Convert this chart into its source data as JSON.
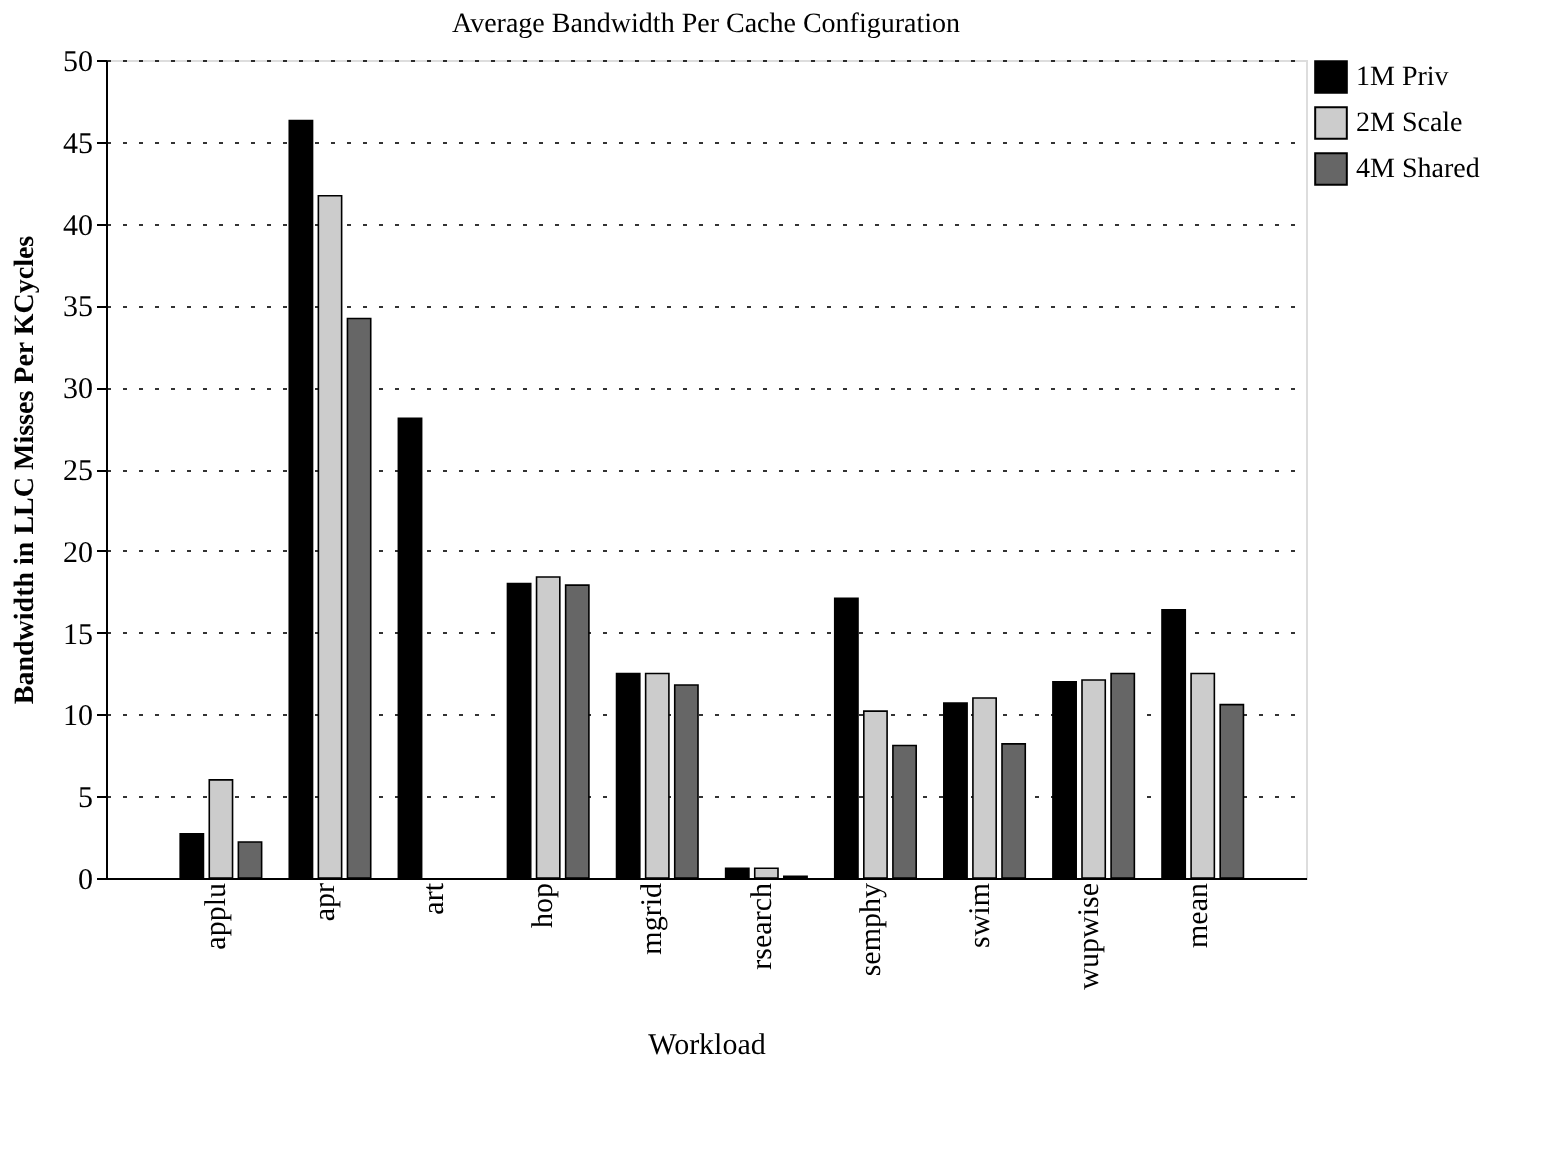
{
  "chart_data": {
    "type": "bar",
    "title": "Average Bandwidth Per Cache Configuration",
    "xlabel": "Workload",
    "ylabel": "Bandwidth in LLC Misses Per KCycles",
    "categories": [
      "applu",
      "apr",
      "art",
      "hop",
      "mgrid",
      "rsearch",
      "semphy",
      "swim",
      "wupwise",
      "mean"
    ],
    "series": [
      {
        "name": "1M Priv",
        "color": "#000000",
        "values": [
          2.7,
          46.3,
          28.1,
          18.0,
          12.5,
          0.6,
          17.1,
          10.7,
          12.0,
          16.4
        ]
      },
      {
        "name": "2M Scale",
        "color": "#cccccc",
        "values": [
          6.0,
          41.7,
          null,
          18.4,
          12.5,
          0.6,
          10.2,
          11.0,
          12.1,
          12.5
        ]
      },
      {
        "name": "4M Shared",
        "color": "#666666",
        "values": [
          2.2,
          34.2,
          null,
          17.9,
          11.8,
          0.1,
          8.1,
          8.2,
          12.5,
          10.6
        ]
      }
    ],
    "ylim": [
      0,
      50
    ],
    "yticks": [
      0,
      5,
      10,
      15,
      20,
      25,
      30,
      35,
      40,
      45,
      50
    ],
    "grid": "y",
    "legend": "top right"
  }
}
